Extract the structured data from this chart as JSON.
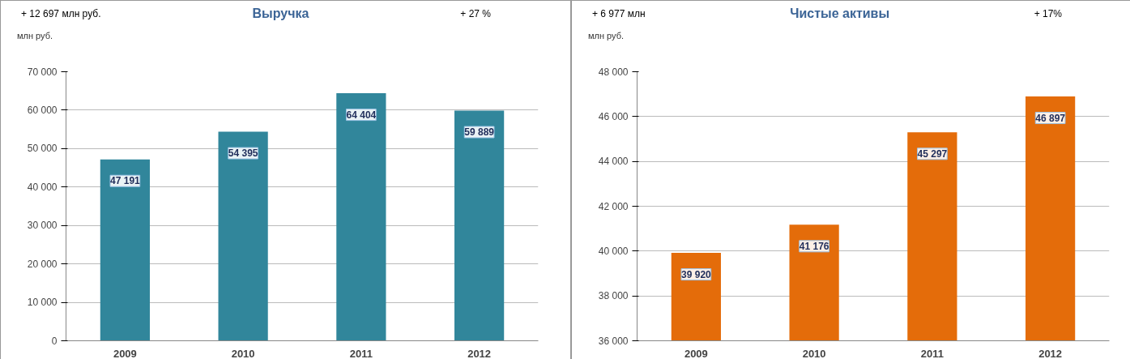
{
  "chart_data": [
    {
      "type": "bar",
      "title": "Выручка",
      "ylabel": "млн руб.",
      "annotations": [
        "+ 12 697 млн руб.",
        "+ 27 %"
      ],
      "categories": [
        "2009",
        "2010",
        "2011",
        "2012"
      ],
      "values": [
        47191,
        54395,
        64404,
        59889
      ],
      "value_labels": [
        "47 191",
        "54 395",
        "64 404",
        "59 889"
      ],
      "color": "#31869b",
      "ylim": [
        0,
        70000
      ],
      "yticks": [
        0,
        {
          "value": 10000,
          "label": "10 000"
        },
        {
          "value": 20000,
          "label": "20 000"
        },
        {
          "value": 30000,
          "label": "30 000"
        },
        {
          "value": 40000,
          "label": "40 000"
        },
        {
          "value": 50000,
          "label": "50 000"
        },
        {
          "value": 60000,
          "label": "60 000"
        },
        {
          "value": 70000,
          "label": "70 000"
        }
      ],
      "grid": "y"
    },
    {
      "type": "bar",
      "title": "Чистые активы",
      "ylabel": "млн руб.",
      "annotations": [
        "+ 6 977 млн",
        "+ 17%"
      ],
      "categories": [
        "2009",
        "2010",
        "2011",
        "2012"
      ],
      "values": [
        39920,
        41176,
        45297,
        46897
      ],
      "value_labels": [
        "39 920",
        "41 176",
        "45 297",
        "46 897"
      ],
      "color": "#e46c0a",
      "ylim": [
        36000,
        48000
      ],
      "yticks": [
        {
          "value": 36000,
          "label": "36 000"
        },
        {
          "value": 38000,
          "label": "38 000"
        },
        {
          "value": 40000,
          "label": "40 000"
        },
        {
          "value": 42000,
          "label": "42 000"
        },
        {
          "value": 44000,
          "label": "44 000"
        },
        {
          "value": 46000,
          "label": "46 000"
        },
        {
          "value": 48000,
          "label": "48 000"
        }
      ],
      "grid": "y"
    }
  ]
}
